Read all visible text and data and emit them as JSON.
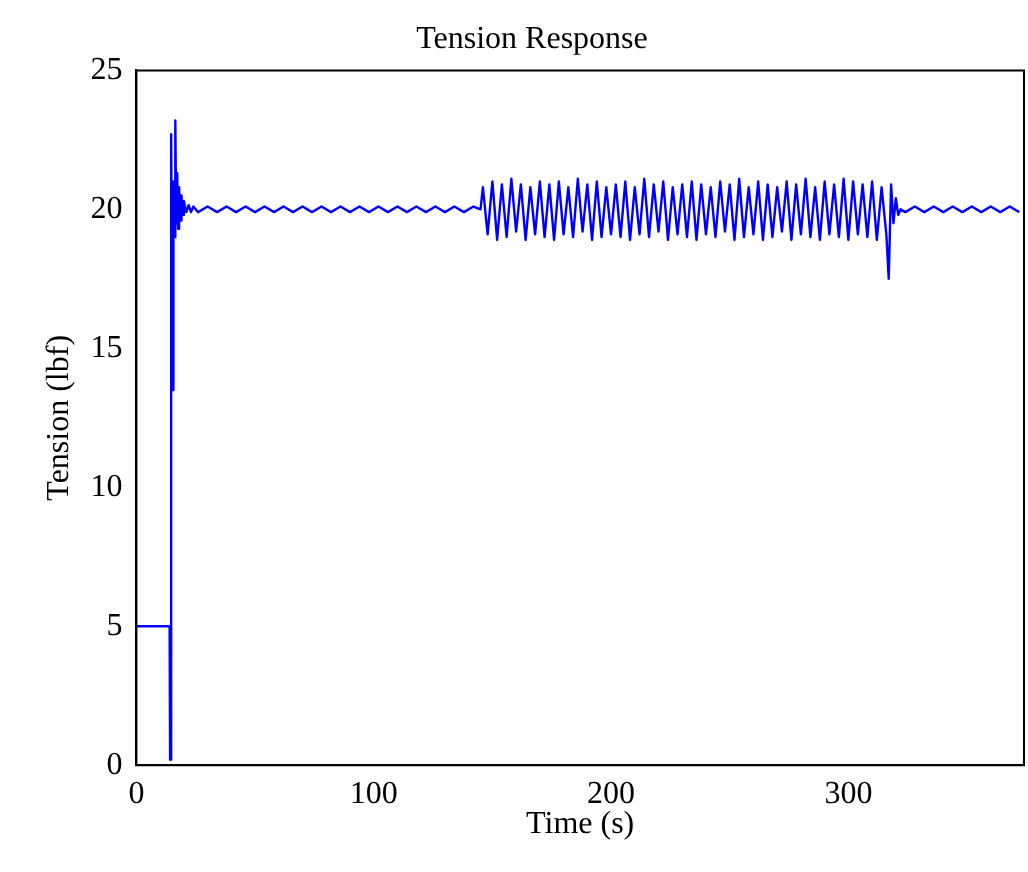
{
  "chart_data": {
    "type": "line",
    "title": "Tension Response",
    "xlabel": "Time (s)",
    "ylabel": "Tension (lbf)",
    "xlim": [
      0,
      374
    ],
    "xticks": [
      0,
      100,
      200,
      300
    ],
    "ylim": [
      0,
      25
    ],
    "yticks": [
      0,
      5,
      10,
      15,
      20,
      25
    ],
    "grid": false,
    "legend": false,
    "marker": "none",
    "line_style": "solid",
    "series": [
      {
        "color": "#0000ff",
        "x": [
          0,
          14,
          14.2,
          14.5,
          14.8,
          15.2,
          15.6,
          16.0,
          16.4,
          16.8,
          17.2,
          17.6,
          18,
          18.5,
          19,
          19.5,
          20,
          21,
          22,
          23,
          24,
          26,
          30,
          34,
          38,
          42,
          46,
          50,
          54,
          58,
          62,
          66,
          70,
          74,
          78,
          82,
          86,
          90,
          94,
          98,
          102,
          106,
          110,
          114,
          118,
          122,
          126,
          130,
          134,
          138,
          142,
          145,
          146,
          148,
          150,
          152,
          154,
          156,
          158,
          160,
          162,
          164,
          166,
          168,
          170,
          172,
          174,
          176,
          178,
          180,
          182,
          184,
          186,
          188,
          190,
          192,
          194,
          196,
          198,
          200,
          202,
          204,
          206,
          208,
          210,
          212,
          214,
          216,
          218,
          220,
          222,
          224,
          226,
          228,
          230,
          232,
          234,
          236,
          238,
          240,
          242,
          244,
          246,
          248,
          250,
          252,
          254,
          256,
          258,
          260,
          262,
          264,
          266,
          268,
          270,
          272,
          274,
          276,
          278,
          280,
          282,
          284,
          286,
          288,
          290,
          292,
          294,
          296,
          298,
          300,
          302,
          304,
          306,
          308,
          310,
          312,
          314,
          316,
          317,
          318,
          319,
          320,
          321,
          322,
          324,
          328,
          332,
          336,
          340,
          344,
          348,
          352,
          356,
          360,
          364,
          368,
          372
        ],
        "values": [
          5,
          5,
          0.2,
          5,
          22.7,
          13.5,
          21,
          19,
          23.2,
          19.5,
          21.3,
          19.3,
          20.8,
          19.6,
          20.5,
          19.8,
          20.3,
          19.9,
          20.15,
          19.9,
          20.1,
          19.9,
          20.1,
          19.9,
          20.1,
          19.9,
          20.1,
          19.9,
          20.1,
          19.9,
          20.1,
          19.9,
          20.1,
          19.9,
          20.1,
          19.9,
          20.1,
          19.9,
          20.1,
          19.9,
          20.1,
          19.9,
          20.1,
          19.9,
          20.1,
          19.9,
          20.1,
          19.9,
          20.1,
          19.9,
          20.1,
          20,
          20.8,
          19.1,
          21.0,
          18.9,
          20.9,
          19.0,
          21.1,
          19.2,
          20.9,
          18.9,
          20.8,
          19.1,
          21.0,
          19.0,
          20.9,
          18.9,
          21.0,
          19.1,
          20.8,
          19.0,
          21.1,
          19.2,
          20.9,
          18.9,
          21.0,
          19.0,
          20.8,
          19.1,
          20.9,
          19.0,
          21.0,
          18.9,
          20.8,
          19.1,
          21.1,
          19.0,
          20.9,
          19.2,
          21.0,
          18.9,
          20.8,
          19.1,
          20.9,
          19.0,
          21.0,
          18.9,
          20.9,
          19.1,
          20.8,
          19.0,
          21.0,
          19.2,
          20.9,
          18.9,
          21.1,
          19.0,
          20.8,
          19.1,
          21.0,
          18.9,
          20.9,
          19.0,
          20.8,
          19.2,
          21.0,
          18.9,
          20.9,
          19.1,
          21.1,
          19.0,
          20.8,
          18.9,
          21.0,
          19.1,
          20.9,
          19.0,
          21.1,
          18.9,
          21.0,
          19.1,
          20.9,
          19.0,
          21.0,
          18.9,
          20.8,
          19.1,
          17.5,
          20.9,
          19.5,
          20.4,
          19.8,
          20,
          19.9,
          20.1,
          19.9,
          20.1,
          19.9,
          20.1,
          19.9,
          20.1,
          19.9,
          20.1,
          19.9,
          20.1,
          19.9
        ]
      }
    ]
  }
}
